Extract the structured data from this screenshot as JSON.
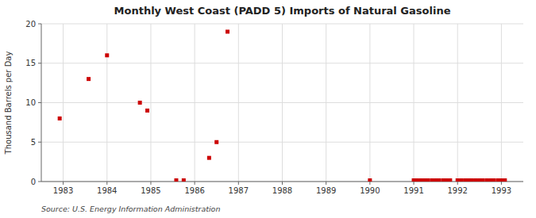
{
  "chart_data": {
    "type": "scatter",
    "title": "Monthly West Coast (PADD 5) Imports of Natural Gasoline",
    "ylabel": "Thousand Barrels per Day",
    "source": "Source: U.S. Energy Information Administration",
    "color": "#cc0000",
    "marker": "square",
    "grid": true,
    "xlim": [
      1982.5,
      1993.5
    ],
    "ylim": [
      0,
      20
    ],
    "xticks": [
      1983,
      1984,
      1985,
      1986,
      1987,
      1988,
      1989,
      1990,
      1991,
      1992,
      1993
    ],
    "yticks": [
      0,
      5,
      10,
      15,
      20
    ],
    "x": [
      1982.92,
      1983.58,
      1984.0,
      1984.75,
      1984.92,
      1985.58,
      1985.75,
      1986.33,
      1986.5,
      1986.75,
      1990.0,
      1991.0,
      1991.08,
      1991.17,
      1991.25,
      1991.33,
      1991.42,
      1991.5,
      1991.58,
      1991.67,
      1991.75,
      1991.83,
      1992.0,
      1992.08,
      1992.17,
      1992.25,
      1992.33,
      1992.42,
      1992.5,
      1992.58,
      1992.67,
      1992.75,
      1992.83,
      1992.92,
      1993.0,
      1993.08
    ],
    "values": [
      8.0,
      13.0,
      16.0,
      10.0,
      9.0,
      0.15,
      0.15,
      3.0,
      5.0,
      19.0,
      0.15,
      0.15,
      0.15,
      0.15,
      0.15,
      0.15,
      0.15,
      0.15,
      0.15,
      0.15,
      0.15,
      0.15,
      0.15,
      0.15,
      0.15,
      0.15,
      0.15,
      0.15,
      0.15,
      0.15,
      0.15,
      0.15,
      0.15,
      0.15,
      0.15,
      0.15
    ]
  }
}
